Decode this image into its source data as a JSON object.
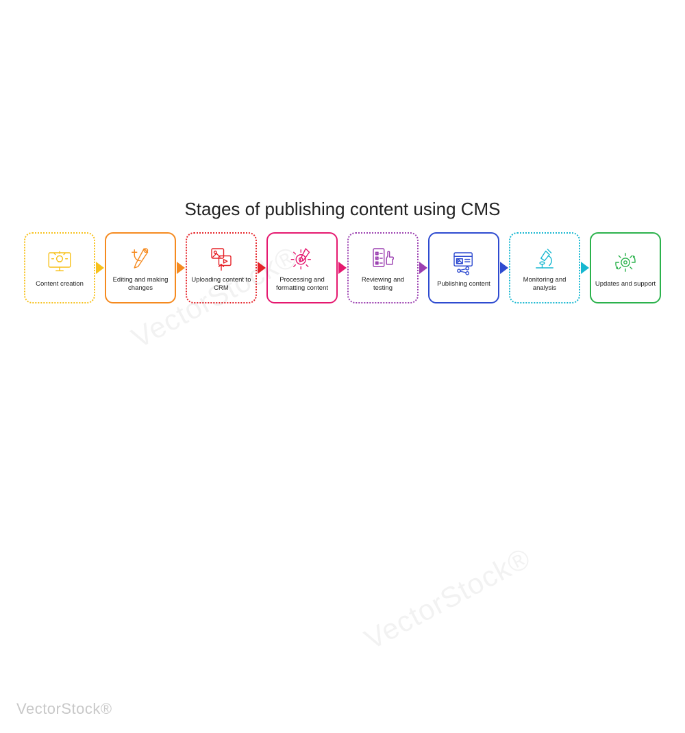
{
  "title": "Stages of publishing content using CMS",
  "watermark": "VectorStock®",
  "diag_watermark": "VectorStock®",
  "background_color": "#ffffff",
  "title_fontsize": 26,
  "label_fontsize": 9.5,
  "box_size": 104,
  "box_radius": 12,
  "stages": [
    {
      "label": "Content creation",
      "color": "#f7c11b",
      "style": "dotted",
      "icon": "monitor-idea"
    },
    {
      "label": "Editing and making changes",
      "color": "#f58a1f",
      "style": "solid",
      "icon": "tools"
    },
    {
      "label": "Uploading content to CRM",
      "color": "#e62329",
      "style": "dotted",
      "icon": "upload-media"
    },
    {
      "label": "Processing and formatting content",
      "color": "#e5186f",
      "style": "solid",
      "icon": "gear-pencil"
    },
    {
      "label": "Reviewing and testing",
      "color": "#9b3fb0",
      "style": "dotted",
      "icon": "checklist-thumb"
    },
    {
      "label": "Publishing content",
      "color": "#2e4bd0",
      "style": "solid",
      "icon": "publish-share"
    },
    {
      "label": "Monitoring and analysis",
      "color": "#16b7d0",
      "style": "dotted",
      "icon": "microscope"
    },
    {
      "label": "Updates and support",
      "color": "#2bb24c",
      "style": "solid",
      "icon": "gear-cycle"
    }
  ],
  "arrows": [
    {
      "color": "#f7c11b"
    },
    {
      "color": "#f58a1f"
    },
    {
      "color": "#e62329"
    },
    {
      "color": "#e5186f"
    },
    {
      "color": "#9b3fb0"
    },
    {
      "color": "#2e4bd0"
    },
    {
      "color": "#16b7d0"
    }
  ]
}
